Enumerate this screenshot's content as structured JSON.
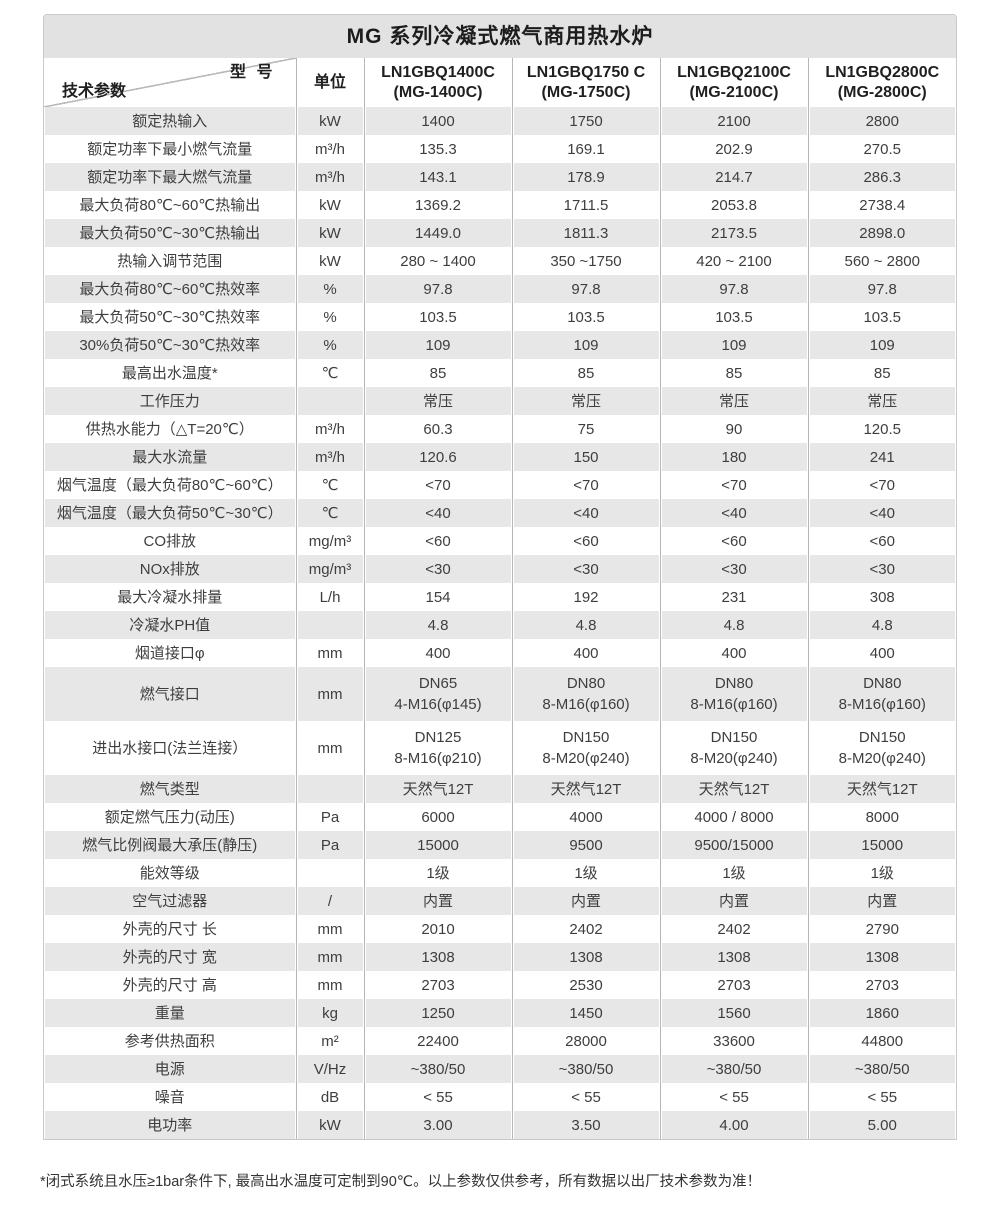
{
  "title": "MG 系列冷凝式燃气商用热水炉",
  "header": {
    "corner_model": "型 号",
    "corner_param": "技术参数",
    "unit": "单位",
    "models": [
      {
        "code": "LN1GBQ1400C",
        "name": "(MG-1400C)"
      },
      {
        "code": "LN1GBQ1750 C",
        "name": "(MG-1750C)"
      },
      {
        "code": "LN1GBQ2100C",
        "name": "(MG-2100C)"
      },
      {
        "code": "LN1GBQ2800C",
        "name": "(MG-2800C)"
      }
    ]
  },
  "rows": [
    {
      "param": "额定热输入",
      "unit": "kW",
      "values": [
        "1400",
        "1750",
        "2100",
        "2800"
      ]
    },
    {
      "param": "额定功率下最小燃气流量",
      "unit": "m³/h",
      "values": [
        "135.3",
        "169.1",
        "202.9",
        "270.5"
      ]
    },
    {
      "param": "额定功率下最大燃气流量",
      "unit": "m³/h",
      "values": [
        "143.1",
        "178.9",
        "214.7",
        "286.3"
      ]
    },
    {
      "param": "最大负荷80℃~60℃热输出",
      "unit": "kW",
      "values": [
        "1369.2",
        "1711.5",
        "2053.8",
        "2738.4"
      ]
    },
    {
      "param": "最大负荷50℃~30℃热输出",
      "unit": "kW",
      "values": [
        "1449.0",
        "1811.3",
        "2173.5",
        "2898.0"
      ]
    },
    {
      "param": "热输入调节范围",
      "unit": "kW",
      "values": [
        "280 ~ 1400",
        "350 ~1750",
        "420 ~ 2100",
        "560 ~ 2800"
      ]
    },
    {
      "param": "最大负荷80℃~60℃热效率",
      "unit": "%",
      "values": [
        "97.8",
        "97.8",
        "97.8",
        "97.8"
      ]
    },
    {
      "param": "最大负荷50℃~30℃热效率",
      "unit": "%",
      "values": [
        "103.5",
        "103.5",
        "103.5",
        "103.5"
      ]
    },
    {
      "param": "30%负荷50℃~30℃热效率",
      "unit": "%",
      "values": [
        "109",
        "109",
        "109",
        "109"
      ]
    },
    {
      "param": "最高出水温度*",
      "unit": "℃",
      "values": [
        "85",
        "85",
        "85",
        "85"
      ]
    },
    {
      "param": "工作压力",
      "unit": "",
      "values": [
        "常压",
        "常压",
        "常压",
        "常压"
      ]
    },
    {
      "param": "供热水能力（△T=20℃）",
      "unit": "m³/h",
      "values": [
        "60.3",
        "75",
        "90",
        "120.5"
      ]
    },
    {
      "param": "最大水流量",
      "unit": "m³/h",
      "values": [
        "120.6",
        "150",
        "180",
        "241"
      ]
    },
    {
      "param": "烟气温度（最大负荷80℃~60℃）",
      "unit": "℃",
      "values": [
        "<70",
        "<70",
        "<70",
        "<70"
      ]
    },
    {
      "param": "烟气温度（最大负荷50℃~30℃）",
      "unit": "℃",
      "values": [
        "<40",
        "<40",
        "<40",
        "<40"
      ]
    },
    {
      "param": "CO排放",
      "unit": "mg/m³",
      "values": [
        "<60",
        "<60",
        "<60",
        "<60"
      ]
    },
    {
      "param": "NOx排放",
      "unit": "mg/m³",
      "values": [
        "<30",
        "<30",
        "<30",
        "<30"
      ]
    },
    {
      "param": "最大冷凝水排量",
      "unit": "L/h",
      "values": [
        "154",
        "192",
        "231",
        "308"
      ]
    },
    {
      "param": "冷凝水PH值",
      "unit": "",
      "values": [
        "4.8",
        "4.8",
        "4.8",
        "4.8"
      ]
    },
    {
      "param": "烟道接口φ",
      "unit": "mm",
      "values": [
        "400",
        "400",
        "400",
        "400"
      ]
    },
    {
      "param": "燃气接口",
      "unit": "mm",
      "values": [
        [
          "DN65",
          "4-M16(φ145)"
        ],
        [
          "DN80",
          "8-M16(φ160)"
        ],
        [
          "DN80",
          "8-M16(φ160)"
        ],
        [
          "DN80",
          "8-M16(φ160)"
        ]
      ]
    },
    {
      "param": "进出水接口(法兰连接）",
      "unit": "mm",
      "values": [
        [
          "DN125",
          "8-M16(φ210)"
        ],
        [
          "DN150",
          "8-M20(φ240)"
        ],
        [
          "DN150",
          "8-M20(φ240)"
        ],
        [
          "DN150",
          "8-M20(φ240)"
        ]
      ]
    },
    {
      "param": "燃气类型",
      "unit": "",
      "values": [
        "天然气12T",
        "天然气12T",
        "天然气12T",
        "天然气12T"
      ]
    },
    {
      "param": "额定燃气压力(动压)",
      "unit": "Pa",
      "values": [
        "6000",
        "4000",
        "4000 / 8000",
        "8000"
      ]
    },
    {
      "param": "燃气比例阀最大承压(静压)",
      "unit": "Pa",
      "values": [
        "15000",
        "9500",
        "9500/15000",
        "15000"
      ]
    },
    {
      "param": "能效等级",
      "unit": "",
      "values": [
        "1级",
        "1级",
        "1级",
        "1级"
      ]
    },
    {
      "param": "空气过滤器",
      "unit": "/",
      "values": [
        "内置",
        "内置",
        "内置",
        "内置"
      ]
    },
    {
      "param": "外壳的尺寸 长",
      "unit": "mm",
      "values": [
        "2010",
        "2402",
        "2402",
        "2790"
      ]
    },
    {
      "param": "外壳的尺寸 宽",
      "unit": "mm",
      "values": [
        "1308",
        "1308",
        "1308",
        "1308"
      ]
    },
    {
      "param": "外壳的尺寸 高",
      "unit": "mm",
      "values": [
        "2703",
        "2530",
        "2703",
        "2703"
      ]
    },
    {
      "param": "重量",
      "unit": "kg",
      "values": [
        "1250",
        "1450",
        "1560",
        "1860"
      ]
    },
    {
      "param": "参考供热面积",
      "unit": "m²",
      "values": [
        "22400",
        "28000",
        "33600",
        "44800"
      ]
    },
    {
      "param": "电源",
      "unit": "V/Hz",
      "values": [
        "~380/50",
        "~380/50",
        "~380/50",
        "~380/50"
      ]
    },
    {
      "param": "噪音",
      "unit": "dB",
      "values": [
        "< 55",
        "< 55",
        "< 55",
        "< 55"
      ]
    },
    {
      "param": "电功率",
      "unit": "kW",
      "values": [
        "3.00",
        "3.50",
        "4.00",
        "5.00"
      ]
    }
  ],
  "footnote": "*闭式系统且水压≥1bar条件下, 最高出水温度可定制到90℃。以上参数仅供参考，所有数据以出厂技术参数为准！",
  "colors": {
    "title_bar": "#e2e2e2",
    "row_band": "#e7e7e7",
    "divider": "#b6b6b6",
    "text": "#3e3e3e",
    "header_text": "#1f1f1f"
  }
}
